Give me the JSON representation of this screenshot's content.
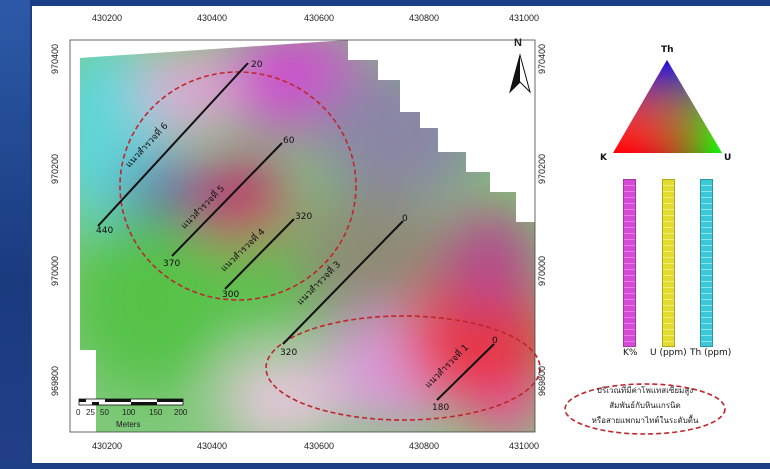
{
  "map": {
    "x_ticks": [
      "430200",
      "430400",
      "430600",
      "430800",
      "431000"
    ],
    "y_ticks": [
      "970400",
      "970200",
      "970000",
      "969800"
    ],
    "north_label": "N",
    "scale_labels": [
      "0",
      "25",
      "50",
      "100",
      "150",
      "200"
    ],
    "scale_unit": "Meters",
    "profiles": [
      {
        "label": "แนวสำรวจที่ 6",
        "start": "440",
        "end": "20"
      },
      {
        "label": "แนวสำรวจที่ 5",
        "start": "370",
        "end": "60"
      },
      {
        "label": "แนวสำรวจที่ 4",
        "start": "300",
        "end": "320"
      },
      {
        "label": "แนวสำรวจที่ 3",
        "start": "320",
        "end": "0"
      },
      {
        "label": "แนวสำรวจที่ 1",
        "start": "180",
        "end": "0"
      }
    ]
  },
  "ternary": {
    "top": "Th",
    "left": "K",
    "right": "U"
  },
  "color_bars": [
    {
      "label": "K%",
      "color": "#d44ad6"
    },
    {
      "label": "U (ppm)",
      "color": "#e3db2d"
    },
    {
      "label": "Th (ppm)",
      "color": "#3cc8d6"
    }
  ],
  "legend_note": [
    "บริเวณที่มีค่าโพแทสเซียมสูง",
    "สัมพันธ์กับหินแกรนิต",
    "หรือสายแพกมาไทต์ในระดับตื้น"
  ],
  "colors": {
    "ellipse": "#c0262d",
    "profile_line": "#111111"
  }
}
